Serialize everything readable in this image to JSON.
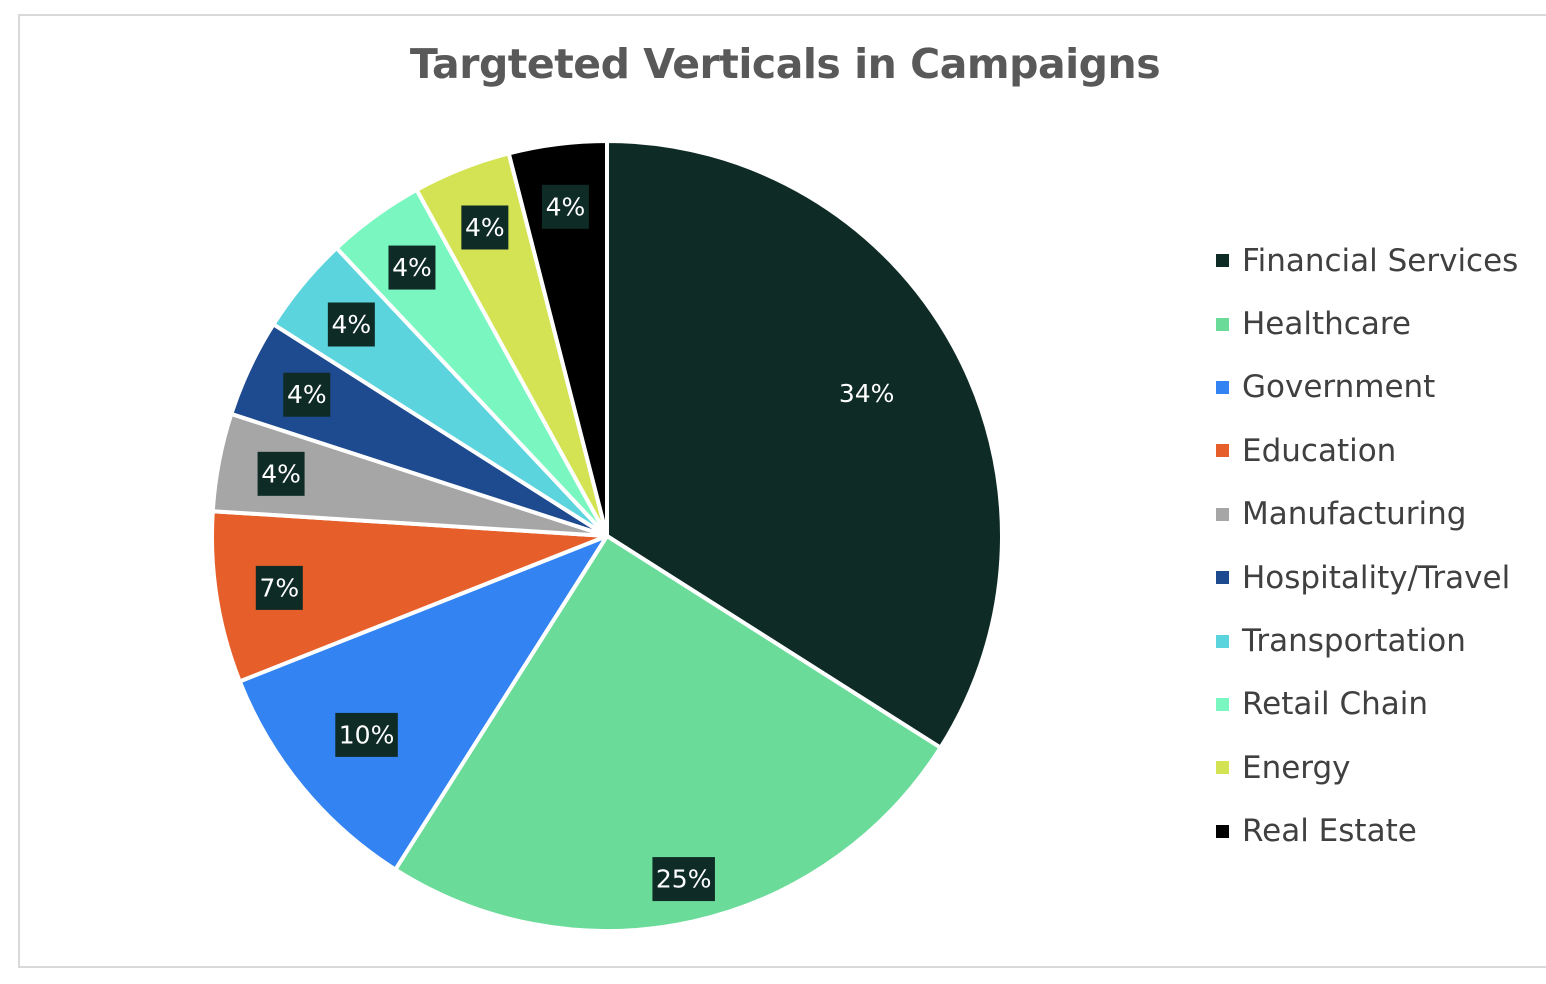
{
  "chart_data": {
    "type": "pie",
    "title": "Targteted Verticals in Campaigns",
    "legend_position": "right",
    "slices": [
      {
        "name": "Financial Services",
        "value": 34,
        "label": "34%",
        "color": "#0f2b26"
      },
      {
        "name": "Healthcare",
        "value": 25,
        "label": "25%",
        "color": "#6bdb9a"
      },
      {
        "name": "Government",
        "value": 10,
        "label": "10%",
        "color": "#3383f2"
      },
      {
        "name": "Education",
        "value": 7,
        "label": "7%",
        "color": "#e65f2b"
      },
      {
        "name": "Manufacturing",
        "value": 4,
        "label": "4%",
        "color": "#a6a6a6"
      },
      {
        "name": "Hospitality/Travel",
        "value": 4,
        "label": "4%",
        "color": "#1e4a8f"
      },
      {
        "name": "Transportation",
        "value": 4,
        "label": "4%",
        "color": "#5cd4de"
      },
      {
        "name": "Retail Chain",
        "value": 4,
        "label": "4%",
        "color": "#7af7c1"
      },
      {
        "name": "Energy",
        "value": 4,
        "label": "4%",
        "color": "#d4e354"
      },
      {
        "name": "Real Estate",
        "value": 4,
        "label": "4%",
        "color": "#000000"
      }
    ],
    "data_label_box_color": "#0f2b26"
  }
}
